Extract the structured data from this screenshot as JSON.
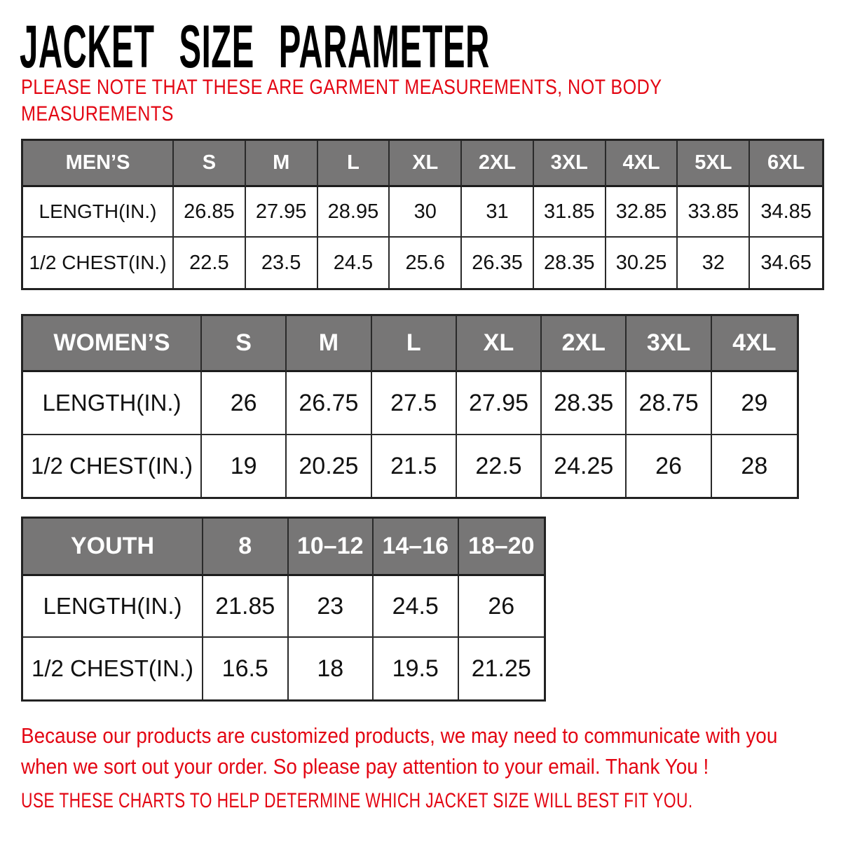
{
  "page": {
    "title": "JACKET SIZE PARAMETER",
    "subtitle_line1": "PLEASE NOTE THAT THESE ARE GARMENT MEASUREMENTS, NOT BODY",
    "subtitle_line2": "MEASUREMENTS",
    "footer_note_line1": "Because our products are customized products, we may need to communicate with you",
    "footer_note_line2": "when we sort out your order. So please pay attention to your email. Thank You !",
    "footer_advice": "USE THESE CHARTS TO HELP DETERMINE WHICH JACKET SIZE WILL BEST FIT YOU."
  },
  "colors": {
    "accent_red": "#e30613",
    "header_gray": "#777676",
    "header_text": "#ffffff",
    "border": "#222222",
    "background": "#ffffff"
  },
  "tables": {
    "mens": {
      "label": "MEN’S",
      "sizes": [
        "S",
        "M",
        "L",
        "XL",
        "2XL",
        "3XL",
        "4XL",
        "5XL",
        "6XL"
      ],
      "rows": [
        {
          "label": "LENGTH(IN.)",
          "values": [
            "26.85",
            "27.95",
            "28.95",
            "30",
            "31",
            "31.85",
            "32.85",
            "33.85",
            "34.85"
          ]
        },
        {
          "label": "1/2 CHEST(IN.)",
          "values": [
            "22.5",
            "23.5",
            "24.5",
            "25.6",
            "26.35",
            "28.35",
            "30.25",
            "32",
            "34.65"
          ]
        }
      ]
    },
    "womens": {
      "label": "WOMEN’S",
      "sizes": [
        "S",
        "M",
        "L",
        "XL",
        "2XL",
        "3XL",
        "4XL"
      ],
      "rows": [
        {
          "label": "LENGTH(IN.)",
          "values": [
            "26",
            "26.75",
            "27.5",
            "27.95",
            "28.35",
            "28.75",
            "29"
          ]
        },
        {
          "label": "1/2 CHEST(IN.)",
          "values": [
            "19",
            "20.25",
            "21.5",
            "22.5",
            "24.25",
            "26",
            "28"
          ]
        }
      ]
    },
    "youth": {
      "label": "YOUTH",
      "sizes": [
        "8",
        "10–12",
        "14–16",
        "18–20"
      ],
      "rows": [
        {
          "label": "LENGTH(IN.)",
          "values": [
            "21.85",
            "23",
            "24.5",
            "26"
          ]
        },
        {
          "label": "1/2 CHEST(IN.)",
          "values": [
            "16.5",
            "18",
            "19.5",
            "21.25"
          ]
        }
      ]
    }
  }
}
